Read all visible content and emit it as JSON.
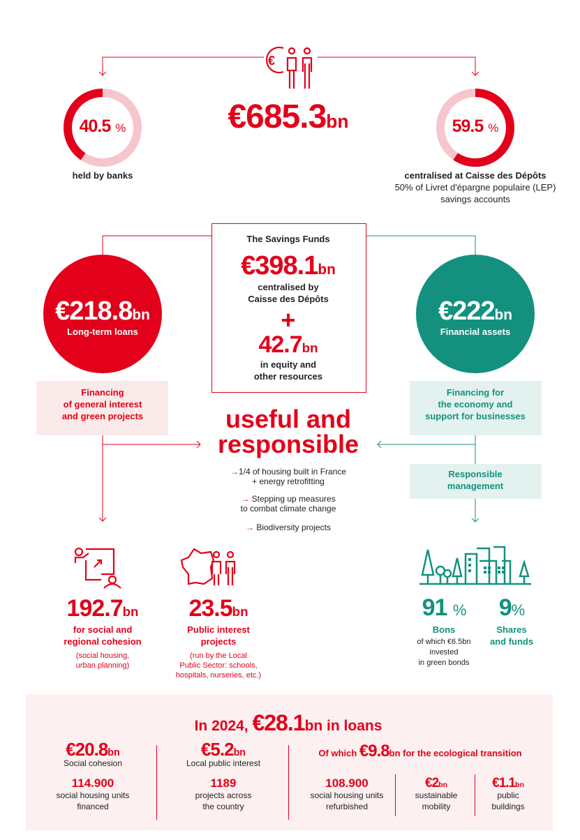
{
  "colors": {
    "red": "#e2001a",
    "pink": "#f6c6cc",
    "teal": "#13917e",
    "pink_bg": "#fbeaea",
    "teal_bg": "#e3f2ef",
    "panel_bg": "#fcf0f0"
  },
  "top": {
    "icon": "euro-people-icon",
    "total_value": "€685.3",
    "total_unit": "bn",
    "banks": {
      "percent": 40.5,
      "value": "40.5",
      "unit": "%",
      "label": "held by banks"
    },
    "cdc": {
      "percent": 59.5,
      "value": "59.5",
      "unit": "%",
      "label": "centralised at Caisse des Dépôts",
      "sub1": "50% of Livret d'épargne populaire (LEP)",
      "sub2": "savings accounts"
    }
  },
  "savings_fund": {
    "title": "The Savings Funds",
    "value": "€398.1",
    "unit": "bn",
    "line1": "centralised by",
    "line2": "Caisse des Dépôts",
    "plus": "+",
    "equity_value": "42.7",
    "equity_unit": "bn",
    "equity_line1": "in equity and",
    "equity_line2": "other resources"
  },
  "loans": {
    "value": "€218.8",
    "unit": "bn",
    "label": "Long-term loans",
    "box": [
      "Financing",
      "of general interest",
      "and green projects"
    ]
  },
  "assets": {
    "value": "€222",
    "unit": "bn",
    "label": "Financial assets",
    "box": [
      "Financing for",
      "the economy and",
      "support for businesses"
    ],
    "management": [
      "Responsible",
      "management"
    ]
  },
  "center": {
    "title1": "useful and",
    "title2": "responsible",
    "bullets": [
      {
        "lines": [
          "1/4 of housing built in France",
          "+ energy retrofitting"
        ]
      },
      {
        "lines": [
          "Stepping up measures",
          "to combat climate change"
        ]
      },
      {
        "lines": [
          "Biodiversity projects"
        ]
      }
    ]
  },
  "outcomes": {
    "social": {
      "icon": "presentation-link-person-icon",
      "value": "192.7",
      "unit": "bn",
      "label": [
        "for social and",
        "regional cohesion"
      ],
      "note": [
        "(social housing,",
        "urban planning)"
      ]
    },
    "public": {
      "icon": "france-map-people-icon",
      "value": "23.5",
      "unit": "bn",
      "label": [
        "Public interest",
        "projects"
      ],
      "note": [
        "(run by the Local",
        "Public Sector: schools,",
        "hospitals, nurseries, etc.)"
      ]
    },
    "city_icon": "city-trees-icon",
    "bonds": {
      "value": "91",
      "unit": "%",
      "label": "Bons",
      "note": [
        "of which €6.5bn",
        "invested",
        "in green bonds"
      ]
    },
    "shares": {
      "value": "9",
      "unit": "%",
      "label": [
        "Shares",
        "and funds"
      ]
    }
  },
  "panel": {
    "title_pre": "In 2024, ",
    "title_value": "€28.1",
    "title_post": "bn in loans",
    "social": {
      "value": "€20.8",
      "unit": "bn",
      "label": "Social cohesion",
      "count": "114.900",
      "count_label": [
        "social housing units",
        "financed"
      ]
    },
    "local": {
      "value": "€5.2",
      "unit": "bn",
      "label": "Local public interest",
      "count": "1189",
      "count_label": [
        "projects across",
        "the country"
      ]
    },
    "eco": {
      "pre": "Of which ",
      "value": "€9.8",
      "post": "bn for the ecological transition",
      "items": [
        {
          "value": "108.900",
          "unit": "",
          "label": [
            "social housing units",
            "refurbished"
          ]
        },
        {
          "value": "€2",
          "unit": "bn",
          "label": [
            "sustainable",
            "mobility"
          ]
        },
        {
          "value": "€1.1",
          "unit": "bn",
          "label": [
            "public",
            "buildings"
          ]
        }
      ]
    }
  }
}
